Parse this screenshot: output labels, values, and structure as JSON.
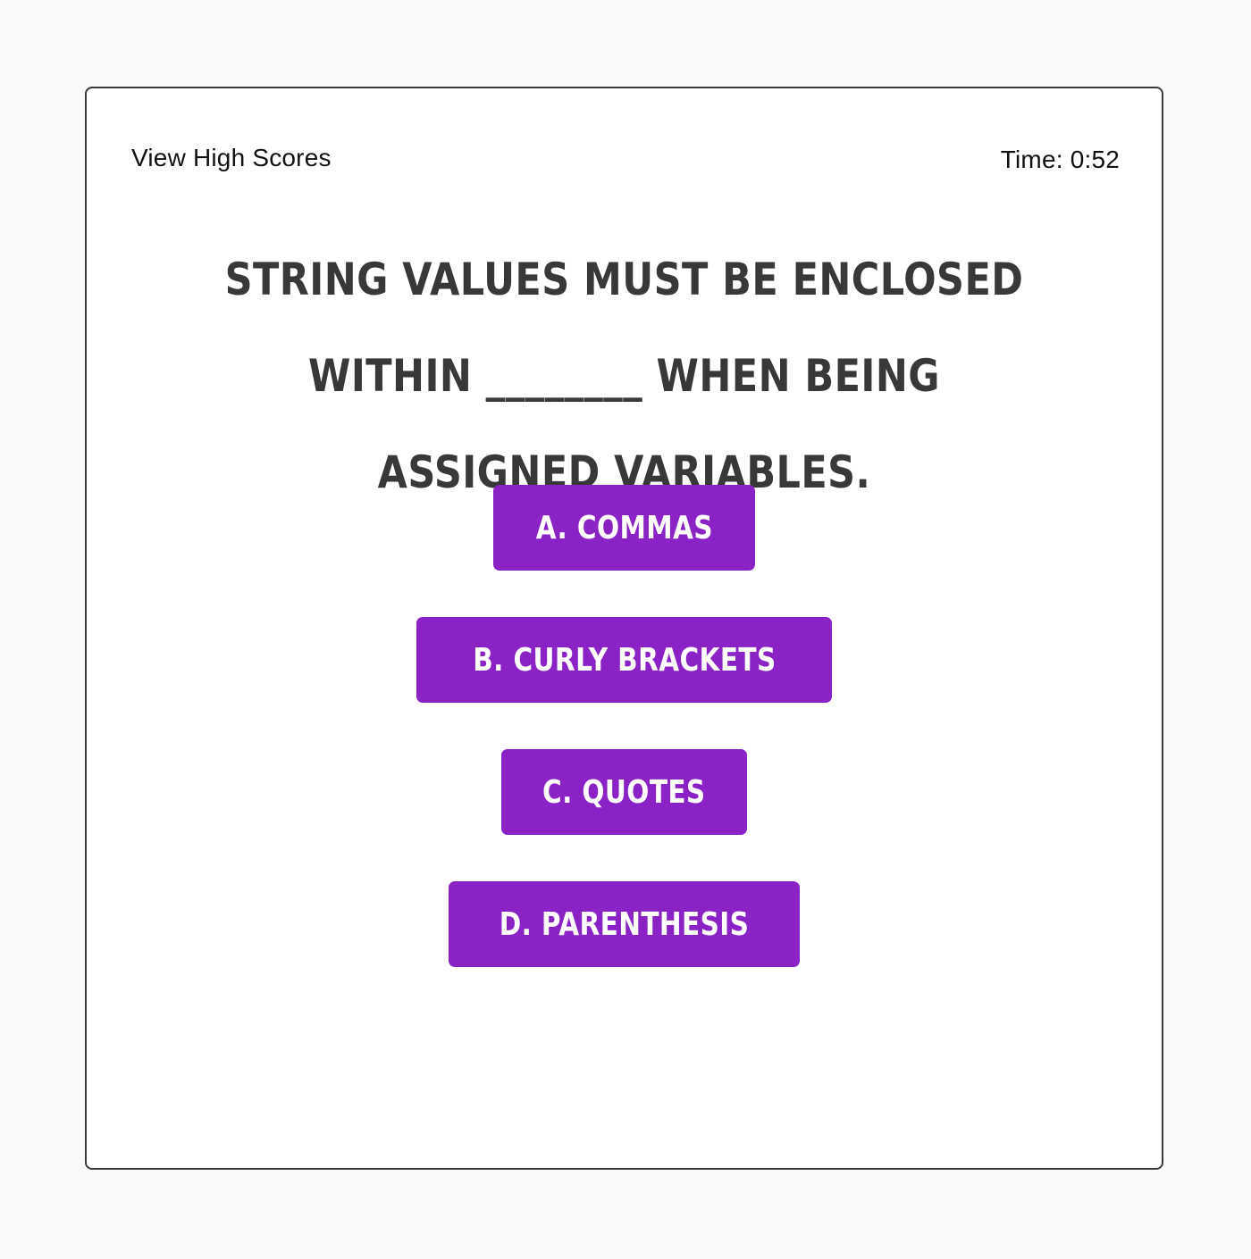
{
  "header": {
    "high_scores_label": "View High Scores",
    "timer_text": "Time: 0:52"
  },
  "question": {
    "text": "String values must be enclosed within ________ when being assigned variables."
  },
  "answers": [
    {
      "label": "A. Commas"
    },
    {
      "label": "B. Curly Brackets"
    },
    {
      "label": "C. Quotes"
    },
    {
      "label": "D. Parenthesis"
    }
  ],
  "colors": {
    "accent": "#8a22c5",
    "question_text": "#383838",
    "page_background": "#f8f9fb",
    "card_border": "#3a3a3a"
  }
}
